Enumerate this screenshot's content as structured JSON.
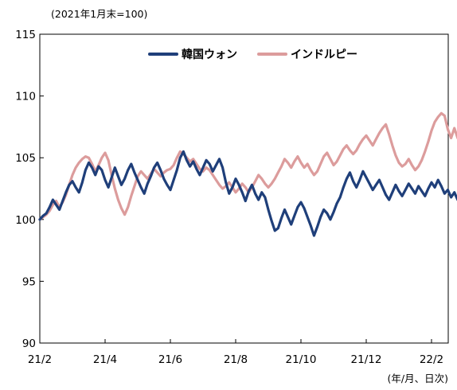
{
  "chart_data": {
    "type": "line",
    "subtitle": "(2021年1月末=100)",
    "xunit": "(年/月、日次)",
    "ylim": [
      90,
      115
    ],
    "yticks": [
      90,
      95,
      100,
      105,
      110,
      115
    ],
    "xticks": [
      "21/2",
      "21/4",
      "21/6",
      "21/8",
      "21/10",
      "21/12",
      "22/2"
    ],
    "legend_position": "top-center",
    "grid": false,
    "series": [
      {
        "name": "韓国ウォン",
        "color": "#1f3f7a",
        "points": [
          [
            0.0,
            100.0
          ],
          [
            0.05,
            100.3
          ],
          [
            0.1,
            100.5
          ],
          [
            0.15,
            101.0
          ],
          [
            0.2,
            101.6
          ],
          [
            0.25,
            101.2
          ],
          [
            0.3,
            100.8
          ],
          [
            0.35,
            101.5
          ],
          [
            0.4,
            102.2
          ],
          [
            0.45,
            102.8
          ],
          [
            0.5,
            103.1
          ],
          [
            0.55,
            102.6
          ],
          [
            0.6,
            102.2
          ],
          [
            0.65,
            103.0
          ],
          [
            0.7,
            104.0
          ],
          [
            0.75,
            104.6
          ],
          [
            0.8,
            104.2
          ],
          [
            0.85,
            103.6
          ],
          [
            0.9,
            104.3
          ],
          [
            0.95,
            104.0
          ],
          [
            1.0,
            103.2
          ],
          [
            1.05,
            102.6
          ],
          [
            1.1,
            103.4
          ],
          [
            1.15,
            104.2
          ],
          [
            1.2,
            103.5
          ],
          [
            1.25,
            102.8
          ],
          [
            1.3,
            103.3
          ],
          [
            1.35,
            104.0
          ],
          [
            1.4,
            104.5
          ],
          [
            1.45,
            103.8
          ],
          [
            1.5,
            103.2
          ],
          [
            1.55,
            102.6
          ],
          [
            1.6,
            102.1
          ],
          [
            1.65,
            102.9
          ],
          [
            1.7,
            103.5
          ],
          [
            1.75,
            104.2
          ],
          [
            1.8,
            104.6
          ],
          [
            1.85,
            104.0
          ],
          [
            1.9,
            103.3
          ],
          [
            1.95,
            102.8
          ],
          [
            2.0,
            102.4
          ],
          [
            2.05,
            103.2
          ],
          [
            2.1,
            104.0
          ],
          [
            2.15,
            105.0
          ],
          [
            2.2,
            105.5
          ],
          [
            2.25,
            104.8
          ],
          [
            2.3,
            104.3
          ],
          [
            2.35,
            104.7
          ],
          [
            2.4,
            104.1
          ],
          [
            2.45,
            103.6
          ],
          [
            2.5,
            104.2
          ],
          [
            2.55,
            104.8
          ],
          [
            2.6,
            104.5
          ],
          [
            2.65,
            103.9
          ],
          [
            2.7,
            104.4
          ],
          [
            2.75,
            104.9
          ],
          [
            2.8,
            104.2
          ],
          [
            2.85,
            103.0
          ],
          [
            2.9,
            102.1
          ],
          [
            2.95,
            102.6
          ],
          [
            3.0,
            103.3
          ],
          [
            3.05,
            102.8
          ],
          [
            3.1,
            102.2
          ],
          [
            3.15,
            101.5
          ],
          [
            3.2,
            102.3
          ],
          [
            3.25,
            102.8
          ],
          [
            3.3,
            102.1
          ],
          [
            3.35,
            101.6
          ],
          [
            3.4,
            102.2
          ],
          [
            3.45,
            101.8
          ],
          [
            3.5,
            100.8
          ],
          [
            3.55,
            99.9
          ],
          [
            3.6,
            99.1
          ],
          [
            3.65,
            99.3
          ],
          [
            3.7,
            100.1
          ],
          [
            3.75,
            100.8
          ],
          [
            3.8,
            100.2
          ],
          [
            3.85,
            99.6
          ],
          [
            3.9,
            100.3
          ],
          [
            3.95,
            101.0
          ],
          [
            4.0,
            101.4
          ],
          [
            4.05,
            100.9
          ],
          [
            4.1,
            100.2
          ],
          [
            4.15,
            99.5
          ],
          [
            4.2,
            98.7
          ],
          [
            4.25,
            99.4
          ],
          [
            4.3,
            100.2
          ],
          [
            4.35,
            100.8
          ],
          [
            4.4,
            100.5
          ],
          [
            4.45,
            100.0
          ],
          [
            4.5,
            100.6
          ],
          [
            4.55,
            101.3
          ],
          [
            4.6,
            101.8
          ],
          [
            4.65,
            102.6
          ],
          [
            4.7,
            103.3
          ],
          [
            4.75,
            103.8
          ],
          [
            4.8,
            103.1
          ],
          [
            4.85,
            102.6
          ],
          [
            4.9,
            103.2
          ],
          [
            4.95,
            103.9
          ],
          [
            5.0,
            103.4
          ],
          [
            5.05,
            102.9
          ],
          [
            5.1,
            102.4
          ],
          [
            5.15,
            102.8
          ],
          [
            5.2,
            103.2
          ],
          [
            5.25,
            102.6
          ],
          [
            5.3,
            102.0
          ],
          [
            5.35,
            101.6
          ],
          [
            5.4,
            102.2
          ],
          [
            5.45,
            102.8
          ],
          [
            5.5,
            102.3
          ],
          [
            5.55,
            101.9
          ],
          [
            5.6,
            102.4
          ],
          [
            5.65,
            102.9
          ],
          [
            5.7,
            102.5
          ],
          [
            5.75,
            102.1
          ],
          [
            5.8,
            102.7
          ],
          [
            5.85,
            102.3
          ],
          [
            5.9,
            101.9
          ],
          [
            5.95,
            102.5
          ],
          [
            6.0,
            103.0
          ],
          [
            6.05,
            102.6
          ],
          [
            6.1,
            103.2
          ],
          [
            6.15,
            102.7
          ],
          [
            6.2,
            102.1
          ],
          [
            6.25,
            102.4
          ],
          [
            6.3,
            101.8
          ],
          [
            6.35,
            102.2
          ],
          [
            6.4,
            101.6
          ],
          [
            6.45,
            102.0
          ],
          [
            6.5,
            102.3
          ]
        ]
      },
      {
        "name": "インドルピー",
        "color": "#dc9c9c",
        "points": [
          [
            0.0,
            100.0
          ],
          [
            0.05,
            100.2
          ],
          [
            0.1,
            100.4
          ],
          [
            0.15,
            100.7
          ],
          [
            0.2,
            101.2
          ],
          [
            0.25,
            101.5
          ],
          [
            0.3,
            101.0
          ],
          [
            0.35,
            101.4
          ],
          [
            0.4,
            102.0
          ],
          [
            0.45,
            102.8
          ],
          [
            0.5,
            103.6
          ],
          [
            0.55,
            104.2
          ],
          [
            0.6,
            104.6
          ],
          [
            0.65,
            104.9
          ],
          [
            0.7,
            105.1
          ],
          [
            0.75,
            105.0
          ],
          [
            0.8,
            104.5
          ],
          [
            0.85,
            103.9
          ],
          [
            0.9,
            104.4
          ],
          [
            0.95,
            105.0
          ],
          [
            1.0,
            105.4
          ],
          [
            1.05,
            104.8
          ],
          [
            1.1,
            103.6
          ],
          [
            1.15,
            102.5
          ],
          [
            1.2,
            101.6
          ],
          [
            1.25,
            100.9
          ],
          [
            1.3,
            100.4
          ],
          [
            1.35,
            101.0
          ],
          [
            1.4,
            101.9
          ],
          [
            1.45,
            102.7
          ],
          [
            1.5,
            103.5
          ],
          [
            1.55,
            103.9
          ],
          [
            1.6,
            103.6
          ],
          [
            1.65,
            103.3
          ],
          [
            1.7,
            103.7
          ],
          [
            1.75,
            104.1
          ],
          [
            1.8,
            103.8
          ],
          [
            1.85,
            103.5
          ],
          [
            1.9,
            103.8
          ],
          [
            1.95,
            104.0
          ],
          [
            2.0,
            104.1
          ],
          [
            2.05,
            104.4
          ],
          [
            2.1,
            105.0
          ],
          [
            2.15,
            105.5
          ],
          [
            2.2,
            105.3
          ],
          [
            2.25,
            105.0
          ],
          [
            2.3,
            104.7
          ],
          [
            2.35,
            104.9
          ],
          [
            2.4,
            104.5
          ],
          [
            2.45,
            104.1
          ],
          [
            2.5,
            103.9
          ],
          [
            2.55,
            104.2
          ],
          [
            2.6,
            104.0
          ],
          [
            2.65,
            103.6
          ],
          [
            2.7,
            103.2
          ],
          [
            2.75,
            102.8
          ],
          [
            2.8,
            102.5
          ],
          [
            2.85,
            102.7
          ],
          [
            2.9,
            103.0
          ],
          [
            2.95,
            102.6
          ],
          [
            3.0,
            102.2
          ],
          [
            3.05,
            102.5
          ],
          [
            3.1,
            102.9
          ],
          [
            3.15,
            102.6
          ],
          [
            3.2,
            102.2
          ],
          [
            3.25,
            102.6
          ],
          [
            3.3,
            103.1
          ],
          [
            3.35,
            103.6
          ],
          [
            3.4,
            103.3
          ],
          [
            3.45,
            102.9
          ],
          [
            3.5,
            102.6
          ],
          [
            3.55,
            102.9
          ],
          [
            3.6,
            103.3
          ],
          [
            3.65,
            103.8
          ],
          [
            3.7,
            104.3
          ],
          [
            3.75,
            104.9
          ],
          [
            3.8,
            104.6
          ],
          [
            3.85,
            104.2
          ],
          [
            3.9,
            104.7
          ],
          [
            3.95,
            105.1
          ],
          [
            4.0,
            104.6
          ],
          [
            4.05,
            104.2
          ],
          [
            4.1,
            104.5
          ],
          [
            4.15,
            104.0
          ],
          [
            4.2,
            103.6
          ],
          [
            4.25,
            103.9
          ],
          [
            4.3,
            104.5
          ],
          [
            4.35,
            105.1
          ],
          [
            4.4,
            105.4
          ],
          [
            4.45,
            104.9
          ],
          [
            4.5,
            104.4
          ],
          [
            4.55,
            104.7
          ],
          [
            4.6,
            105.2
          ],
          [
            4.65,
            105.7
          ],
          [
            4.7,
            106.0
          ],
          [
            4.75,
            105.6
          ],
          [
            4.8,
            105.3
          ],
          [
            4.85,
            105.6
          ],
          [
            4.9,
            106.1
          ],
          [
            4.95,
            106.5
          ],
          [
            5.0,
            106.8
          ],
          [
            5.05,
            106.4
          ],
          [
            5.1,
            106.0
          ],
          [
            5.15,
            106.5
          ],
          [
            5.2,
            107.0
          ],
          [
            5.25,
            107.4
          ],
          [
            5.3,
            107.7
          ],
          [
            5.35,
            106.9
          ],
          [
            5.4,
            106.0
          ],
          [
            5.45,
            105.2
          ],
          [
            5.5,
            104.6
          ],
          [
            5.55,
            104.3
          ],
          [
            5.6,
            104.5
          ],
          [
            5.65,
            104.9
          ],
          [
            5.7,
            104.4
          ],
          [
            5.75,
            104.0
          ],
          [
            5.8,
            104.3
          ],
          [
            5.85,
            104.8
          ],
          [
            5.9,
            105.5
          ],
          [
            5.95,
            106.3
          ],
          [
            6.0,
            107.2
          ],
          [
            6.05,
            107.9
          ],
          [
            6.1,
            108.3
          ],
          [
            6.15,
            108.6
          ],
          [
            6.2,
            108.4
          ],
          [
            6.25,
            107.3
          ],
          [
            6.3,
            106.6
          ],
          [
            6.35,
            107.4
          ],
          [
            6.4,
            106.6
          ],
          [
            6.45,
            107.3
          ],
          [
            6.5,
            107.1
          ]
        ]
      }
    ]
  }
}
